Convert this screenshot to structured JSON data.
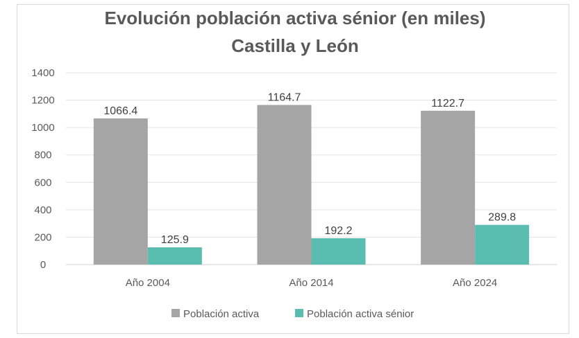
{
  "chart_data": {
    "type": "bar",
    "title": "Evolución población activa sénior (en miles)",
    "subtitle": "Castilla y León",
    "categories": [
      "Año 2004",
      "Año 2014",
      "Año 2024"
    ],
    "series": [
      {
        "name": "Población activa",
        "values": [
          1066.4,
          1164.7,
          1122.7
        ],
        "color": "#a5a5a5"
      },
      {
        "name": "Población activa sénior",
        "values": [
          125.9,
          192.2,
          289.8
        ],
        "color": "#5bbcb0"
      }
    ],
    "data_labels": [
      [
        "1066.4",
        "1164.7",
        "1122.7"
      ],
      [
        "125.9",
        "192.2",
        "289.8"
      ]
    ],
    "ylim": [
      0,
      1400
    ],
    "yticks": [
      "0",
      "200",
      "400",
      "600",
      "800",
      "1000",
      "1200",
      "1400"
    ],
    "grid": true,
    "legend_position": "bottom"
  }
}
